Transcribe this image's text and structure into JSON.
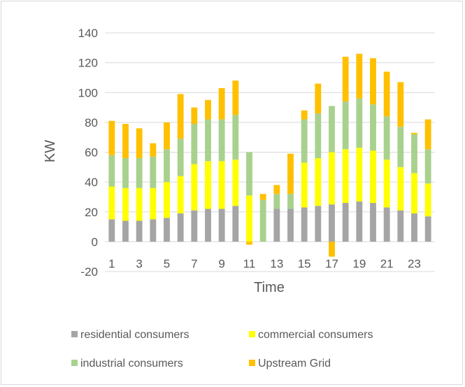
{
  "chart_data": {
    "type": "bar",
    "stacked": true,
    "title": "",
    "xlabel": "Time",
    "ylabel": "KW",
    "ylim": [
      -20,
      140
    ],
    "yticks": [
      -20,
      0,
      20,
      40,
      60,
      80,
      100,
      120,
      140
    ],
    "categories": [
      1,
      2,
      3,
      4,
      5,
      6,
      7,
      8,
      9,
      10,
      11,
      12,
      13,
      14,
      15,
      16,
      17,
      18,
      19,
      20,
      21,
      22,
      23,
      24
    ],
    "xtick_labels": [
      "1",
      "3",
      "5",
      "7",
      "9",
      "11",
      "13",
      "15",
      "17",
      "19",
      "21",
      "23"
    ],
    "grid": true,
    "legend_position": "bottom",
    "series": [
      {
        "name": "residential consumers",
        "color": "#a5a5a5",
        "values": [
          15,
          14,
          14,
          15,
          16,
          19,
          21,
          22,
          22,
          24,
          0,
          0,
          22,
          22,
          23,
          24,
          25,
          26,
          27,
          26,
          23,
          21,
          19,
          17
        ]
      },
      {
        "name": "commercial consumers",
        "color": "#ffff00",
        "values": [
          22,
          22,
          22,
          21,
          24,
          25,
          31,
          32,
          32,
          31,
          31,
          0,
          0,
          0,
          30,
          32,
          35,
          36,
          36,
          35,
          32,
          29,
          27,
          22
        ]
      },
      {
        "name": "industrial consumers",
        "color": "#a9d18e",
        "values": [
          21,
          20,
          20,
          21,
          22,
          25,
          27,
          28,
          28,
          30,
          29,
          28,
          10,
          10,
          29,
          30,
          31,
          32,
          33,
          31,
          29,
          27,
          26,
          23
        ]
      },
      {
        "name": "Upstream Grid",
        "color": "#ffc000",
        "values": [
          23,
          23,
          20,
          9,
          18,
          30,
          11,
          13,
          21,
          23,
          -2,
          4,
          6,
          27,
          6,
          20,
          -10,
          30,
          30,
          31,
          30,
          30,
          1,
          20
        ]
      }
    ]
  }
}
